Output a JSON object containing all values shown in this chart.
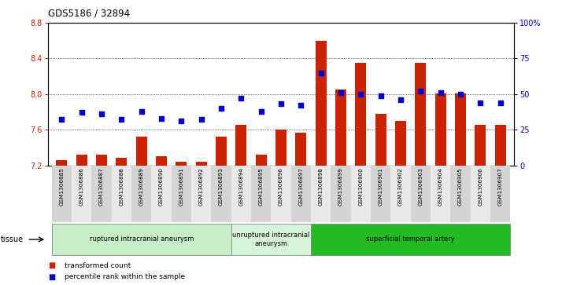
{
  "title": "GDS5186 / 32894",
  "samples": [
    "GSM1306885",
    "GSM1306886",
    "GSM1306887",
    "GSM1306888",
    "GSM1306889",
    "GSM1306890",
    "GSM1306891",
    "GSM1306892",
    "GSM1306893",
    "GSM1306894",
    "GSM1306895",
    "GSM1306896",
    "GSM1306897",
    "GSM1306898",
    "GSM1306899",
    "GSM1306900",
    "GSM1306901",
    "GSM1306902",
    "GSM1306903",
    "GSM1306904",
    "GSM1306905",
    "GSM1306906",
    "GSM1306907"
  ],
  "transformed_count": [
    7.26,
    7.32,
    7.32,
    7.28,
    7.52,
    7.3,
    7.24,
    7.24,
    7.52,
    7.65,
    7.32,
    7.6,
    7.57,
    8.6,
    8.05,
    8.35,
    7.78,
    7.7,
    8.35,
    8.01,
    8.01,
    7.65,
    7.65
  ],
  "percentile_rank": [
    32,
    37,
    36,
    32,
    38,
    33,
    31,
    32,
    40,
    47,
    38,
    43,
    42,
    65,
    51,
    50,
    49,
    46,
    52,
    51,
    50,
    44,
    44
  ],
  "groups": [
    {
      "label": "ruptured intracranial aneurysm",
      "start": 0,
      "end": 9,
      "color": "#c8eec8"
    },
    {
      "label": "unruptured intracranial\naneurysm",
      "start": 9,
      "end": 13,
      "color": "#d8f4d8"
    },
    {
      "label": "superficial temporal artery",
      "start": 13,
      "end": 23,
      "color": "#22bb22"
    }
  ],
  "ylim_left": [
    7.2,
    8.8
  ],
  "ylim_right": [
    0,
    100
  ],
  "yticks_left": [
    7.2,
    7.6,
    8.0,
    8.4,
    8.8
  ],
  "yticks_right": [
    0,
    25,
    50,
    75,
    100
  ],
  "ytick_labels_right": [
    "0",
    "25",
    "50",
    "75",
    "100%"
  ],
  "bar_color": "#cc2200",
  "dot_color": "#0000cc",
  "bar_bottom": 7.2,
  "legend_items": [
    {
      "label": "transformed count",
      "color": "#cc2200"
    },
    {
      "label": "percentile rank within the sample",
      "color": "#0000cc"
    }
  ],
  "tissue_label": "tissue",
  "gridline_values": [
    7.6,
    8.0,
    8.4
  ],
  "xtick_bg_color": "#d4d4d4",
  "xtick_bg_color2": "#e8e8e8"
}
